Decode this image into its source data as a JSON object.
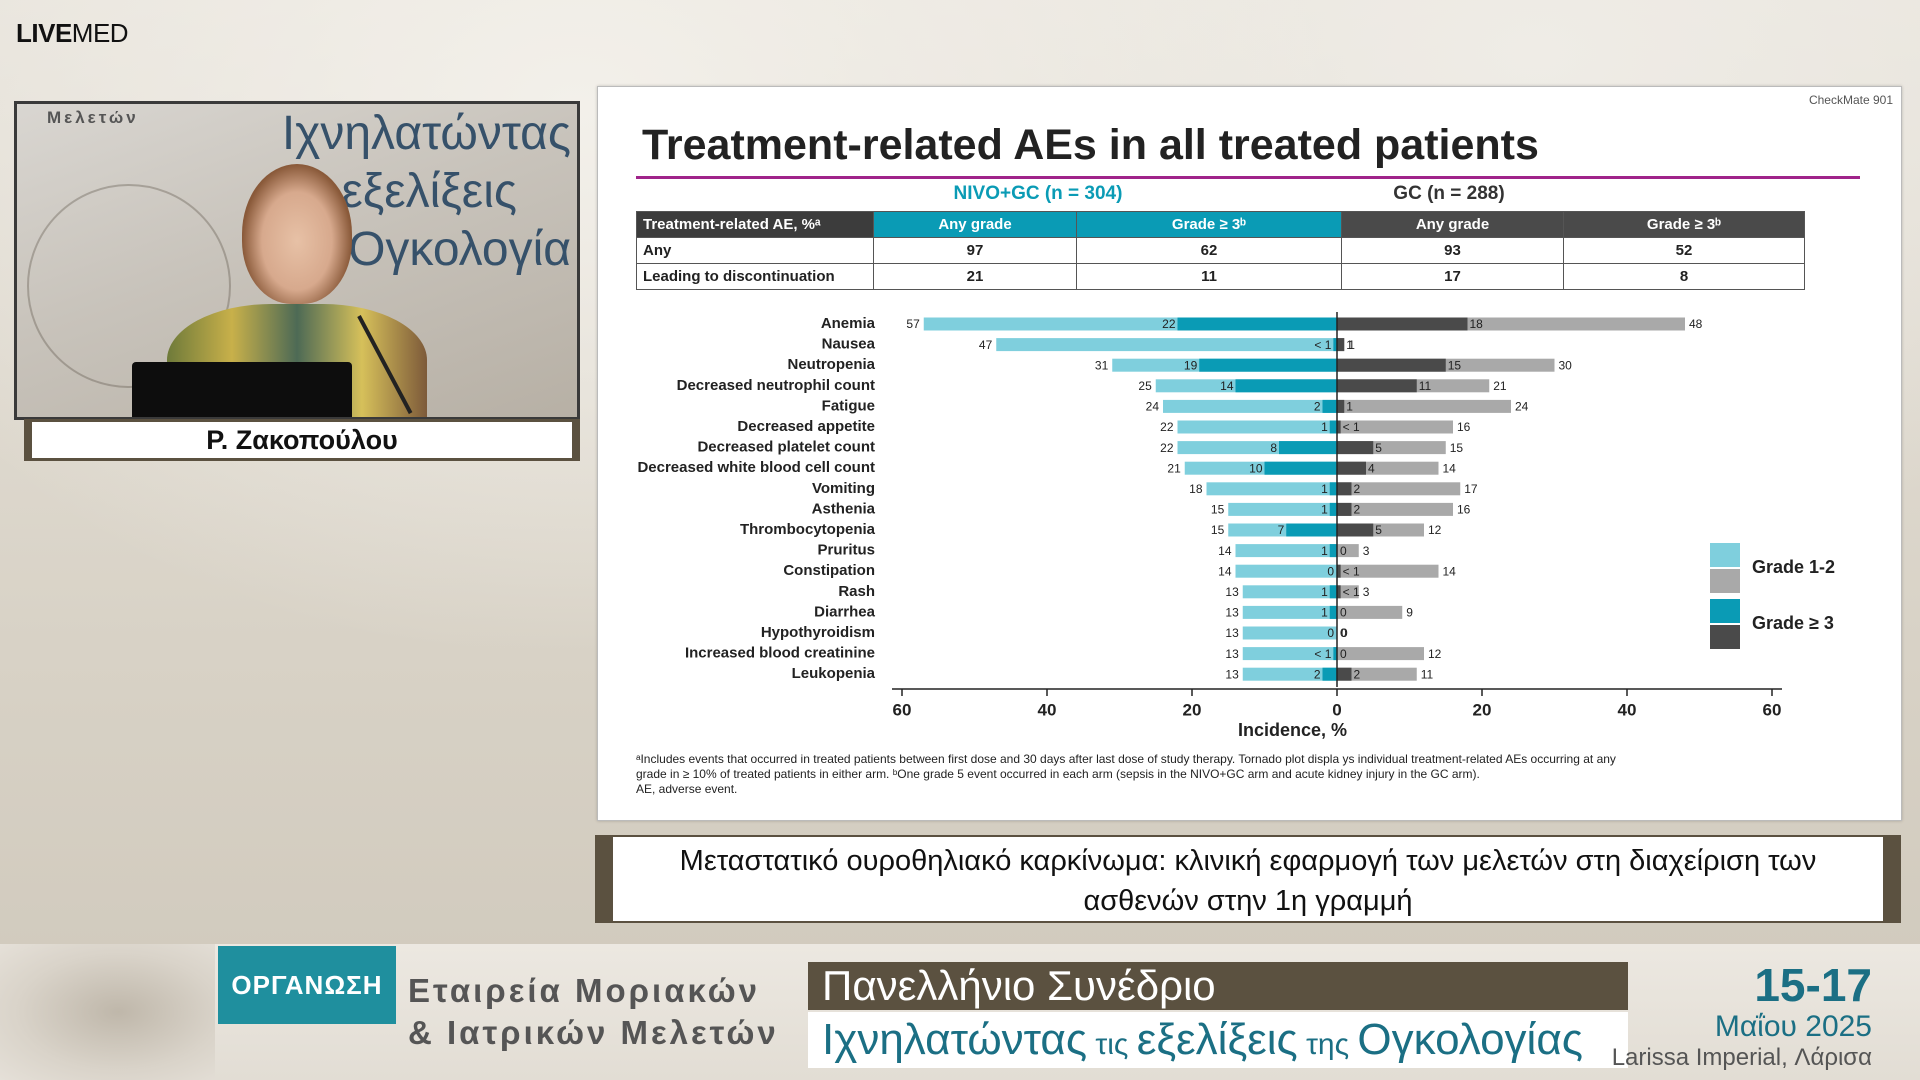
{
  "app": {
    "logo_bold": "LIVE",
    "logo_light": "MED"
  },
  "speaker": {
    "name": "Ρ. Ζακοπούλου",
    "wall_small": "Μελετών",
    "wall_lines": [
      "Ιχνηλατώντας",
      "εξελίξεις",
      "Ογκολογία"
    ]
  },
  "slide": {
    "tag": "CheckMate 901",
    "title": "Treatment-related AEs in all treated patients",
    "arms": {
      "nivo": "NIVO+GC (n = 304)",
      "gc": "GC (n = 288)"
    },
    "table": {
      "headers": [
        "Treatment-related AE, %ᵃ",
        "Any grade",
        "Grade ≥ 3ᵇ",
        "Any grade",
        "Grade ≥ 3ᵇ"
      ],
      "rows": [
        {
          "label": "Any",
          "values": [
            "97",
            "62",
            "93",
            "52"
          ]
        },
        {
          "label": "Leading to discontinuation",
          "values": [
            "21",
            "11",
            "17",
            "8"
          ]
        }
      ]
    },
    "legend": {
      "grade12": "Grade 1-2",
      "grade3": "Grade ≥ 3"
    },
    "footnote_lines": [
      "ᵃIncludes  events that occurred  in treated  patients  between  first dose and 30 days after last dose of study therapy.  Tornado plot  displa ys  individual treatment-related  AEs occurring  at any",
      "grade in ≥ 10% of treated  patients  in either arm.  ᵇOne grade 5 event occurred  in each arm (sepsis in the NIVO+GC  arm and acute  kidney injury in   the GC arm).",
      "AE, adverse event."
    ]
  },
  "chart_data": {
    "type": "bar",
    "orientation": "horizontal-tornado",
    "xlabel": "Incidence, %",
    "xlim": [
      -60,
      60
    ],
    "ticks": [
      "60",
      "40",
      "20",
      "0",
      "20",
      "40",
      "60"
    ],
    "categories": [
      "Anemia",
      "Nausea",
      "Neutropenia",
      "Decreased neutrophil count",
      "Fatigue",
      "Decreased appetite",
      "Decreased platelet count",
      "Decreased white blood cell count",
      "Vomiting",
      "Asthenia",
      "Thrombocytopenia",
      "Pruritus",
      "Constipation",
      "Rash",
      "Diarrhea",
      "Hypothyroidism",
      "Increased blood creatinine",
      "Leukopenia"
    ],
    "series": [
      {
        "name": "NIVO+GC Any grade",
        "values": [
          57,
          47,
          31,
          25,
          24,
          22,
          22,
          21,
          18,
          15,
          15,
          14,
          14,
          13,
          13,
          13,
          13,
          13
        ]
      },
      {
        "name": "NIVO+GC Grade ≥ 3",
        "values": [
          22,
          0.5,
          19,
          14,
          2,
          1,
          8,
          10,
          1,
          1,
          7,
          1,
          0,
          1,
          1,
          0,
          0.5,
          2
        ],
        "labels": [
          "22",
          "< 1",
          "19",
          "14",
          "2",
          "1",
          "8",
          "10",
          "1",
          "1",
          "7",
          "1",
          "0",
          "1",
          "1",
          "0",
          "< 1",
          "2"
        ]
      },
      {
        "name": "GC Any grade",
        "values": [
          48,
          1,
          30,
          21,
          24,
          16,
          15,
          14,
          17,
          16,
          12,
          3,
          14,
          3,
          9,
          0,
          12,
          11
        ]
      },
      {
        "name": "GC Grade ≥ 3",
        "values": [
          18,
          1,
          15,
          11,
          1,
          0.5,
          5,
          4,
          2,
          2,
          5,
          0,
          0.5,
          0.5,
          0,
          0,
          0,
          2
        ],
        "labels": [
          "18",
          "1",
          "15",
          "11",
          "1",
          "< 1",
          "5",
          "4",
          "2",
          "2",
          "5",
          "0",
          "< 1",
          "< 1",
          "0",
          "0",
          "0",
          "2"
        ]
      }
    ],
    "colors": {
      "nivo_any": "#7fcfdd",
      "nivo_g3": "#0a9bb5",
      "gc_any": "#a9a9a9",
      "gc_g3": "#4a4a4a"
    }
  },
  "caption": {
    "line1": "Μεταστατικό ουροθηλιακό καρκίνωμα: κλινική εφαρμογή των μελετών στη διαχείριση των",
    "line2": "ασθενών στην 1η γραμμή"
  },
  "bottom": {
    "org_label": "ΟΡΓΑΝΩΣΗ",
    "org_line1": "Εταιρεία Μοριακών",
    "org_line2": "& Ιατρικών Μελετών",
    "conf_line1": "Πανελλήνιο Συνέδριο",
    "conf_a": "Ιχνηλατώντας",
    "conf_b": " τις ",
    "conf_c": "εξελίξεις",
    "conf_d": " της ",
    "conf_e": "Ογκολογίας",
    "date": "15-17",
    "month": "Μαΐου 2025",
    "venue": "Larissa Imperial, Λάρισα"
  }
}
